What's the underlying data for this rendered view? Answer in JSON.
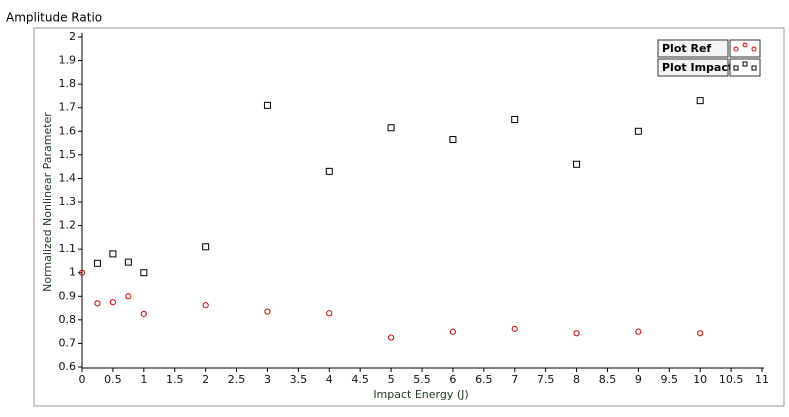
{
  "chart_data": {
    "type": "scatter",
    "title": "Amplitude Ratio",
    "x_label": "Impact Energy (J)",
    "y_label": "Normalized Nonlinear Parameter",
    "xlim": [
      0,
      11
    ],
    "ylim": [
      0.6,
      2
    ],
    "xticks": [
      0,
      0.5,
      1,
      1.5,
      2,
      2.5,
      3,
      3.5,
      4,
      4.5,
      5,
      5.5,
      6,
      6.5,
      7,
      7.5,
      8,
      8.5,
      9,
      9.5,
      10,
      10.5,
      11
    ],
    "yticks": [
      0.6,
      0.7,
      0.8,
      0.9,
      1,
      1.1,
      1.2,
      1.3,
      1.4,
      1.5,
      1.6,
      1.7,
      1.8,
      1.9,
      2
    ],
    "grid": false,
    "legend": "top-right",
    "series": [
      {
        "name": "Plot Ref",
        "color": "#cc0000",
        "marker": "circle",
        "x": [
          0,
          0.25,
          0.5,
          0.75,
          1,
          2,
          3,
          4,
          5,
          6,
          7,
          8,
          9,
          10
        ],
        "values": [
          1.0,
          0.87,
          0.875,
          0.9,
          0.825,
          0.862,
          0.835,
          0.828,
          0.725,
          0.75,
          0.762,
          0.743,
          0.75,
          0.743
        ]
      },
      {
        "name": "Plot Impact",
        "color": "#000000",
        "marker": "square",
        "x": [
          0.25,
          0.5,
          0.75,
          1,
          2,
          3,
          4,
          5,
          6,
          7,
          8,
          9,
          10
        ],
        "values": [
          1.04,
          1.08,
          1.045,
          1.0,
          1.11,
          1.71,
          1.43,
          1.615,
          1.565,
          1.65,
          1.46,
          1.6,
          1.73
        ]
      }
    ]
  }
}
